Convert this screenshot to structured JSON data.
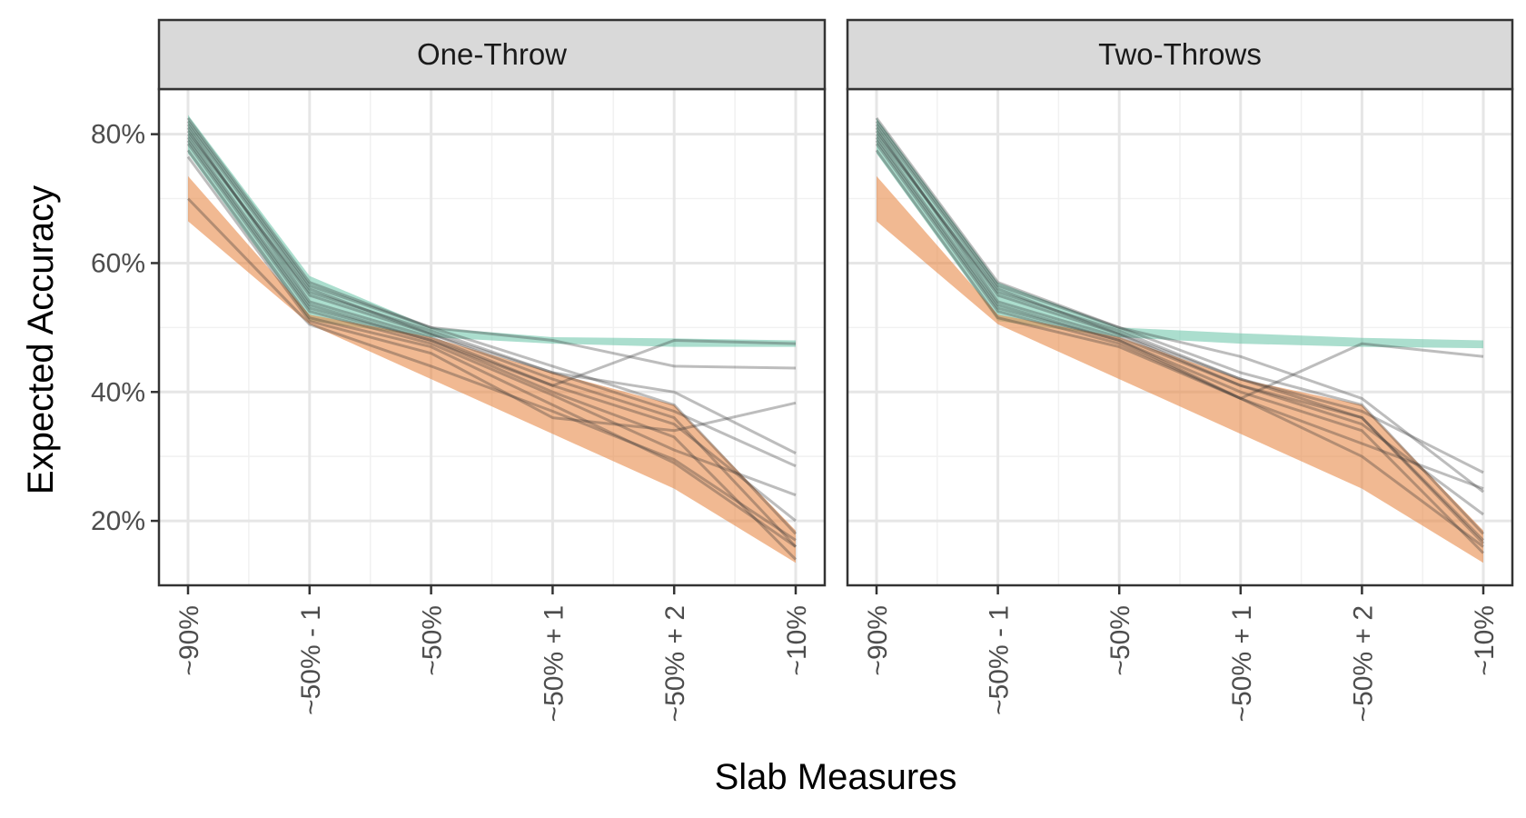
{
  "chart_data": {
    "type": "line",
    "xlabel": "Slab Measures",
    "ylabel": "Expected Accuracy",
    "categories": [
      "~90%",
      "~50% - 1",
      "~50%",
      "~50% + 1",
      "~50% + 2",
      "~10%"
    ],
    "y_ticks": [
      "20%",
      "40%",
      "60%",
      "80%"
    ],
    "y_tick_values": [
      20,
      40,
      60,
      80
    ],
    "ylim": [
      10,
      87
    ],
    "grid": true,
    "colors": {
      "green_band": "#66c2a5",
      "orange_band": "#e78a4a",
      "lines": "#333333",
      "strip_fill": "#d9d9d9"
    },
    "panels": [
      {
        "facet": "One-Throw",
        "green_band": {
          "lower": [
            77,
            51,
            48.5,
            47.5,
            47,
            47
          ],
          "upper": [
            83,
            58,
            50,
            48.5,
            48.3,
            48
          ]
        },
        "orange_band": {
          "lower": [
            66.5,
            50.5,
            42,
            33.5,
            25,
            13.5
          ],
          "upper": [
            73.5,
            52,
            48.5,
            43,
            38,
            18.5
          ]
        },
        "series": [
          {
            "values": [
              80.5,
              55,
              49,
              42,
              36,
              16
            ]
          },
          {
            "values": [
              79,
              53,
              48,
              40,
              33,
              14
            ]
          },
          {
            "values": [
              82,
              56.5,
              50,
              44,
              38,
              18
            ]
          },
          {
            "values": [
              77.5,
              51.5,
              47,
              38,
              29,
              16
            ]
          },
          {
            "values": [
              81,
              54,
              48.5,
              41,
              35,
              20
            ]
          },
          {
            "values": [
              78.5,
              52.5,
              47.5,
              39.5,
              31,
              24
            ]
          },
          {
            "values": [
              80,
              55.5,
              49.5,
              43,
              40,
              30.5
            ]
          },
          {
            "values": [
              82.5,
              57,
              50,
              48,
              44,
              43.7
            ]
          },
          {
            "values": [
              76.5,
              51,
              46,
              36,
              34,
              38.3
            ]
          },
          {
            "values": [
              79.5,
              53.5,
              48,
              41,
              48,
              47.5
            ]
          },
          {
            "values": [
              81.5,
              56,
              49,
              43,
              37,
              28.5
            ]
          },
          {
            "values": [
              70,
              50.5,
              44,
              37,
              29.5,
              17
            ]
          }
        ]
      },
      {
        "facet": "Two-Throws",
        "green_band": {
          "lower": [
            77,
            51,
            48.5,
            47.5,
            47,
            46.8
          ]
        },
        "orange_band": {
          "lower": [
            66.5,
            50.5,
            42,
            33.5,
            25,
            13.5
          ],
          "upper": [
            73.5,
            52,
            48.5,
            42,
            38,
            18.5
          ]
        },
        "series": [
          {
            "values": [
              80.5,
              55,
              49,
              41,
              36,
              17
            ]
          },
          {
            "values": [
              79,
              53,
              48,
              40,
              34,
              15
            ]
          },
          {
            "values": [
              82,
              56.5,
              50,
              43,
              38,
              18
            ]
          },
          {
            "values": [
              77.5,
              51.5,
              47,
              39,
              30,
              16
            ]
          },
          {
            "values": [
              81,
              54,
              48.5,
              41,
              35,
              21
            ]
          },
          {
            "values": [
              78.5,
              52.5,
              47.5,
              39,
              32,
              25
            ]
          },
          {
            "values": [
              80,
              55.5,
              49.5,
              42,
              37,
              27.5
            ]
          },
          {
            "values": [
              82.5,
              57,
              50,
              45.5,
              39,
              24.5
            ]
          },
          {
            "values": [
              79.5,
              53.5,
              48,
              39,
              47.5,
              45.5
            ]
          },
          {
            "values": [
              81.5,
              56,
              49,
              42,
              36,
              16.5
            ]
          }
        ]
      }
    ]
  }
}
